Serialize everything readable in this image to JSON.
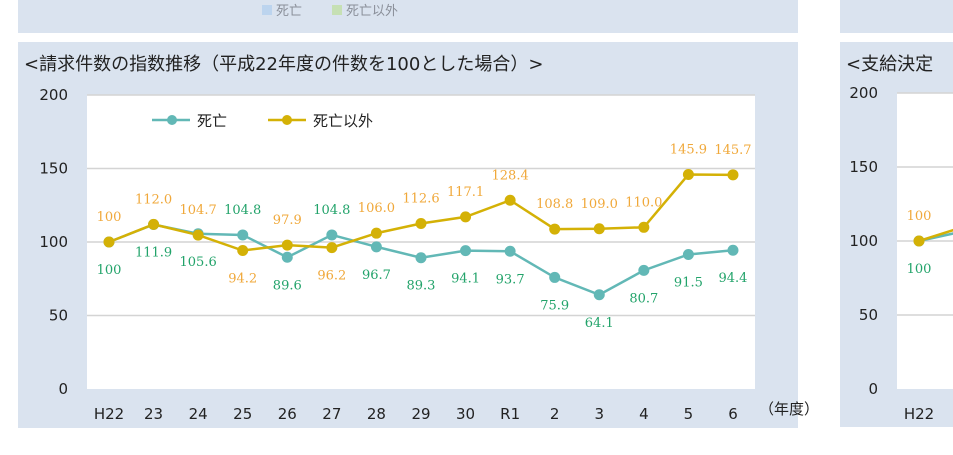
{
  "top_legend": {
    "items": [
      {
        "label": "死亡",
        "color": "#bcd4ee"
      },
      {
        "label": "死亡以外",
        "color": "#c6e0b4"
      }
    ]
  },
  "chart_data": [
    {
      "type": "line",
      "title": "<請求件数の指数推移（平成22年度の件数を100とした場合）>",
      "xlabel": "（年度）",
      "ylabel": "",
      "categories": [
        "H22",
        "23",
        "24",
        "25",
        "26",
        "27",
        "28",
        "29",
        "30",
        "R1",
        "2",
        "3",
        "4",
        "5",
        "6"
      ],
      "ylim": [
        0,
        200
      ],
      "yticks": [
        0,
        50,
        100,
        150,
        200
      ],
      "grid": true,
      "legend": "top-left",
      "series": [
        {
          "name": "死亡",
          "color": "#62b8b6",
          "label_color": "#22a36a",
          "values": [
            100,
            111.9,
            105.6,
            104.8,
            89.6,
            104.8,
            96.7,
            89.3,
            94.1,
            93.7,
            75.9,
            64.1,
            80.7,
            91.5,
            94.4
          ],
          "labels": [
            "100",
            "111.9",
            "105.6",
            "104.8",
            "89.6",
            "104.8",
            "96.7",
            "89.3",
            "94.1",
            "93.7",
            "75.9",
            "64.1",
            "80.7",
            "91.5",
            "94.4"
          ]
        },
        {
          "name": "死亡以外",
          "color": "#d4b106",
          "label_color": "#f0a83a",
          "values": [
            100,
            112.0,
            104.7,
            94.2,
            97.9,
            96.2,
            106.0,
            112.6,
            117.1,
            128.4,
            108.8,
            109.0,
            110.0,
            145.9,
            145.7
          ],
          "labels": [
            "100",
            "112.0",
            "104.7",
            "94.2",
            "97.9",
            "96.2",
            "106.0",
            "112.6",
            "117.1",
            "128.4",
            "108.8",
            "109.0",
            "110.0",
            "145.9",
            "145.7"
          ]
        }
      ]
    },
    {
      "type": "line",
      "title": "<支給決定",
      "categories": [
        "H22"
      ],
      "ylim": [
        0,
        200
      ],
      "yticks": [
        0,
        50,
        100,
        150,
        200
      ],
      "grid": true,
      "series": [
        {
          "color": "#62b8b6",
          "label_color": "#22a36a",
          "values": [
            100
          ],
          "labels": [
            "100"
          ]
        },
        {
          "color": "#d4b106",
          "label_color": "#f0a83a",
          "values": [
            100
          ],
          "labels": [
            "100"
          ]
        }
      ]
    }
  ]
}
